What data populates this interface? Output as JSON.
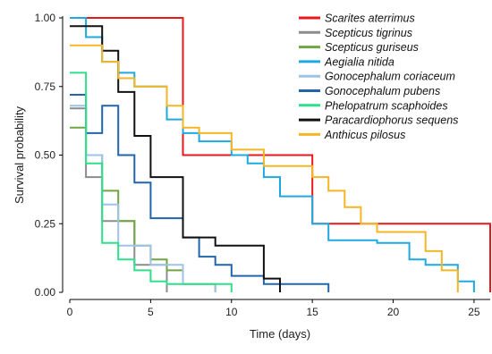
{
  "chart_data": {
    "type": "line",
    "step": true,
    "xlabel": "Time (days)",
    "ylabel": "Survival probability",
    "xlim": [
      0,
      26
    ],
    "ylim": [
      0,
      1
    ],
    "xticks": [
      0,
      5,
      10,
      15,
      20,
      25
    ],
    "yticks": [
      0,
      0.25,
      0.5,
      0.75,
      1
    ],
    "ytick_labels": [
      "0.00",
      "0.25",
      "0.50",
      "0.75",
      "1.00"
    ],
    "grid": false,
    "legend_position": "top-right",
    "series": [
      {
        "name": "Scarites aterrimus",
        "color": "#e41a1c",
        "points": [
          [
            0,
            1.0
          ],
          [
            7,
            1.0
          ],
          [
            7,
            0.5
          ],
          [
            15,
            0.5
          ],
          [
            15,
            0.25
          ],
          [
            26,
            0.25
          ],
          [
            26,
            0
          ]
        ]
      },
      {
        "name": "Scepticus tigrinus",
        "color": "#8c8c8c",
        "points": [
          [
            0,
            0.67
          ],
          [
            1,
            0.67
          ],
          [
            1,
            0.42
          ],
          [
            2,
            0.42
          ],
          [
            2,
            0.26
          ],
          [
            4,
            0.26
          ],
          [
            4,
            0.1
          ],
          [
            6,
            0.1
          ],
          [
            6,
            0
          ]
        ]
      },
      {
        "name": "Scepticus guriseus",
        "color": "#6fa543",
        "points": [
          [
            0,
            0.6
          ],
          [
            1,
            0.6
          ],
          [
            1,
            0.5
          ],
          [
            2,
            0.5
          ],
          [
            2,
            0.37
          ],
          [
            3,
            0.37
          ],
          [
            3,
            0.26
          ],
          [
            4,
            0.26
          ],
          [
            4,
            0.17
          ],
          [
            5,
            0.17
          ],
          [
            5,
            0.12
          ],
          [
            6,
            0.12
          ],
          [
            6,
            0.08
          ],
          [
            7,
            0.08
          ],
          [
            7,
            0.03
          ],
          [
            9,
            0.03
          ],
          [
            9,
            0
          ]
        ]
      },
      {
        "name": "Aegialia nitida",
        "color": "#1fa9e1",
        "points": [
          [
            0,
            1.0
          ],
          [
            1,
            1.0
          ],
          [
            1,
            0.93
          ],
          [
            2,
            0.93
          ],
          [
            2,
            0.84
          ],
          [
            3,
            0.84
          ],
          [
            3,
            0.8
          ],
          [
            4,
            0.8
          ],
          [
            4,
            0.75
          ],
          [
            6,
            0.75
          ],
          [
            6,
            0.63
          ],
          [
            7,
            0.63
          ],
          [
            7,
            0.58
          ],
          [
            8,
            0.58
          ],
          [
            8,
            0.55
          ],
          [
            10,
            0.55
          ],
          [
            10,
            0.5
          ],
          [
            11,
            0.5
          ],
          [
            11,
            0.47
          ],
          [
            12,
            0.47
          ],
          [
            12,
            0.42
          ],
          [
            13,
            0.42
          ],
          [
            13,
            0.35
          ],
          [
            15,
            0.35
          ],
          [
            15,
            0.25
          ],
          [
            16,
            0.25
          ],
          [
            16,
            0.19
          ],
          [
            19,
            0.19
          ],
          [
            19,
            0.18
          ],
          [
            21,
            0.18
          ],
          [
            21,
            0.12
          ],
          [
            22,
            0.12
          ],
          [
            22,
            0.1
          ],
          [
            24,
            0.1
          ],
          [
            24,
            0.04
          ],
          [
            25,
            0.04
          ],
          [
            25,
            0
          ]
        ]
      },
      {
        "name": "Gonocephalum coriaceum",
        "color": "#9ec3e6",
        "points": [
          [
            0,
            0.68
          ],
          [
            1,
            0.68
          ],
          [
            1,
            0.5
          ],
          [
            2,
            0.5
          ],
          [
            2,
            0.32
          ],
          [
            3,
            0.32
          ],
          [
            3,
            0.17
          ],
          [
            5,
            0.17
          ],
          [
            5,
            0.1
          ],
          [
            7,
            0.1
          ],
          [
            7,
            0.03
          ],
          [
            9,
            0.03
          ],
          [
            9,
            0
          ]
        ]
      },
      {
        "name": "Gonocephalum pubens",
        "color": "#2166ac",
        "points": [
          [
            0,
            0.72
          ],
          [
            1,
            0.72
          ],
          [
            1,
            0.58
          ],
          [
            2,
            0.58
          ],
          [
            2,
            0.68
          ],
          [
            3,
            0.68
          ],
          [
            3,
            0.5
          ],
          [
            4,
            0.5
          ],
          [
            4,
            0.4
          ],
          [
            5,
            0.4
          ],
          [
            5,
            0.27
          ],
          [
            7,
            0.27
          ],
          [
            7,
            0.2
          ],
          [
            8,
            0.2
          ],
          [
            8,
            0.13
          ],
          [
            9,
            0.13
          ],
          [
            9,
            0.1
          ],
          [
            10,
            0.1
          ],
          [
            10,
            0.06
          ],
          [
            12,
            0.06
          ],
          [
            12,
            0.03
          ],
          [
            16,
            0.03
          ],
          [
            16,
            0
          ]
        ]
      },
      {
        "name": "Phelopatrum scaphoides",
        "color": "#2ee08c",
        "points": [
          [
            0,
            0.8
          ],
          [
            1,
            0.8
          ],
          [
            1,
            0.47
          ],
          [
            2,
            0.47
          ],
          [
            2,
            0.18
          ],
          [
            3,
            0.18
          ],
          [
            3,
            0.12
          ],
          [
            4,
            0.12
          ],
          [
            4,
            0.08
          ],
          [
            5,
            0.08
          ],
          [
            5,
            0.04
          ],
          [
            6,
            0.04
          ],
          [
            6,
            0.03
          ],
          [
            10,
            0.03
          ],
          [
            10,
            0
          ]
        ]
      },
      {
        "name": "Paracardiophorus sequens",
        "color": "#111111",
        "points": [
          [
            0,
            0.97
          ],
          [
            2,
            0.97
          ],
          [
            2,
            0.88
          ],
          [
            3,
            0.88
          ],
          [
            3,
            0.73
          ],
          [
            4,
            0.73
          ],
          [
            4,
            0.57
          ],
          [
            5,
            0.57
          ],
          [
            5,
            0.42
          ],
          [
            7,
            0.42
          ],
          [
            7,
            0.2
          ],
          [
            9,
            0.2
          ],
          [
            9,
            0.17
          ],
          [
            12,
            0.17
          ],
          [
            12,
            0.05
          ],
          [
            13,
            0.05
          ],
          [
            13,
            0
          ]
        ]
      },
      {
        "name": "Anthicus pilosus",
        "color": "#f4b625",
        "points": [
          [
            0,
            0.9
          ],
          [
            2,
            0.9
          ],
          [
            2,
            0.84
          ],
          [
            3,
            0.84
          ],
          [
            3,
            0.78
          ],
          [
            4,
            0.78
          ],
          [
            4,
            0.75
          ],
          [
            6,
            0.75
          ],
          [
            6,
            0.68
          ],
          [
            7,
            0.68
          ],
          [
            7,
            0.6
          ],
          [
            8,
            0.6
          ],
          [
            8,
            0.58
          ],
          [
            10,
            0.58
          ],
          [
            10,
            0.52
          ],
          [
            12,
            0.52
          ],
          [
            12,
            0.46
          ],
          [
            15,
            0.46
          ],
          [
            15,
            0.42
          ],
          [
            16,
            0.42
          ],
          [
            16,
            0.37
          ],
          [
            17,
            0.37
          ],
          [
            17,
            0.31
          ],
          [
            18,
            0.31
          ],
          [
            18,
            0.25
          ],
          [
            19,
            0.25
          ],
          [
            19,
            0.22
          ],
          [
            22,
            0.22
          ],
          [
            22,
            0.15
          ],
          [
            23,
            0.15
          ],
          [
            23,
            0.08
          ],
          [
            24,
            0.08
          ],
          [
            24,
            0
          ]
        ]
      }
    ]
  }
}
